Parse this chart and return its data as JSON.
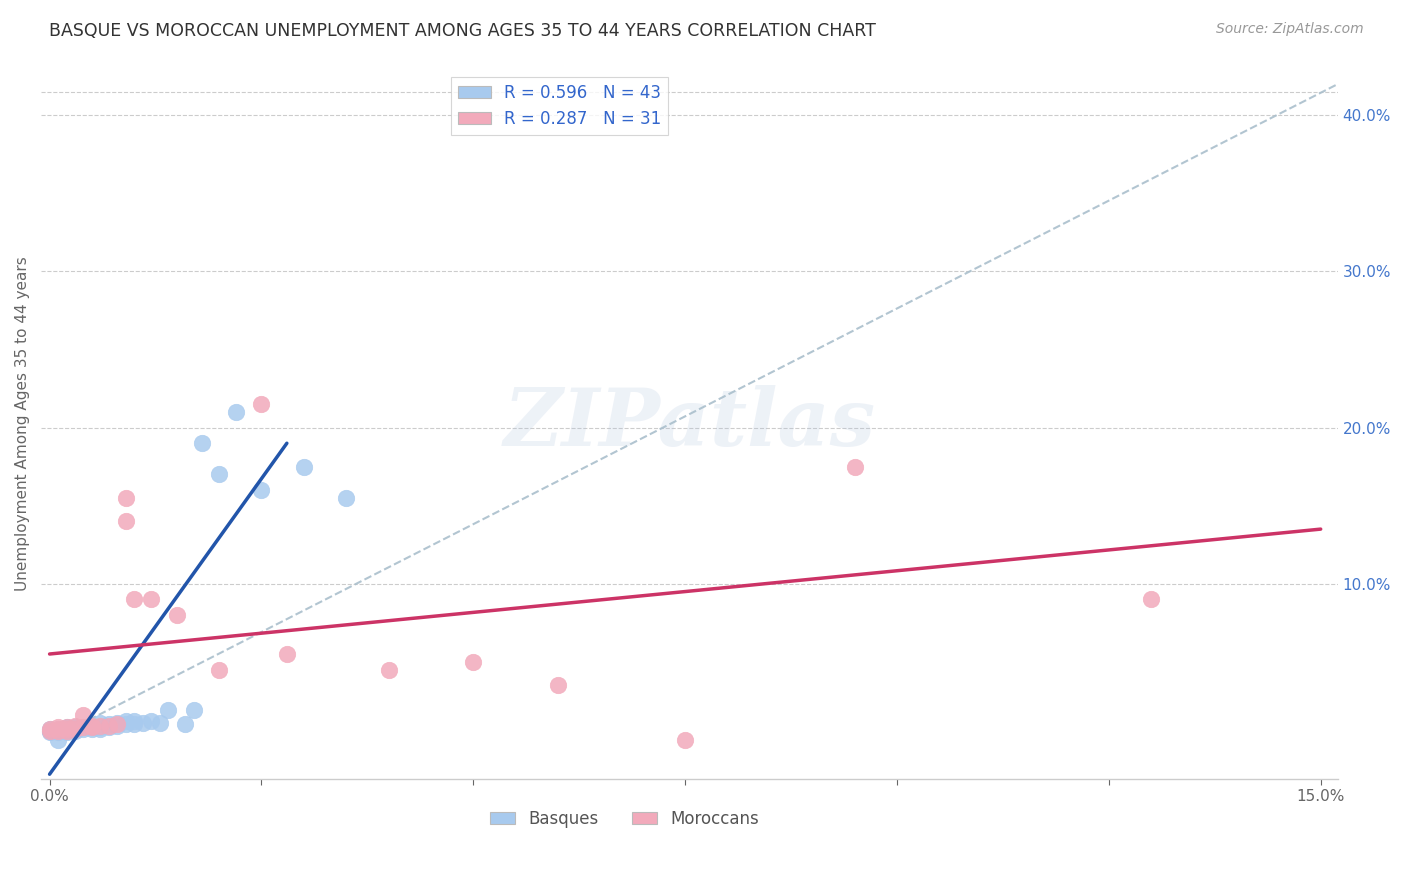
{
  "title": "BASQUE VS MOROCCAN UNEMPLOYMENT AMONG AGES 35 TO 44 YEARS CORRELATION CHART",
  "source": "Source: ZipAtlas.com",
  "ylabel": "Unemployment Among Ages 35 to 44 years",
  "xlim": [
    -0.001,
    0.152
  ],
  "ylim": [
    -0.025,
    0.43
  ],
  "xticks": [
    0.0,
    0.025,
    0.05,
    0.075,
    0.1,
    0.125,
    0.15
  ],
  "xtick_labels": [
    "0.0%",
    "",
    "",
    "",
    "",
    "",
    "15.0%"
  ],
  "ytick_right": [
    0.1,
    0.2,
    0.3,
    0.4
  ],
  "ytick_right_labels": [
    "10.0%",
    "20.0%",
    "30.0%",
    "40.0%"
  ],
  "blue_dot_color": "#A8CAEE",
  "pink_dot_color": "#F2AABB",
  "blue_line_color": "#2255AA",
  "pink_line_color": "#CC3366",
  "diag_color": "#AABFCC",
  "watermark": "ZIPatlas",
  "basque_R": 0.596,
  "basque_N": 43,
  "moroccan_R": 0.287,
  "moroccan_N": 31,
  "basque_x": [
    0.0,
    0.0,
    0.0,
    0.001,
    0.001,
    0.001,
    0.001,
    0.002,
    0.002,
    0.002,
    0.002,
    0.003,
    0.003,
    0.003,
    0.003,
    0.004,
    0.004,
    0.005,
    0.005,
    0.005,
    0.006,
    0.006,
    0.006,
    0.007,
    0.007,
    0.008,
    0.008,
    0.009,
    0.009,
    0.01,
    0.01,
    0.011,
    0.012,
    0.013,
    0.014,
    0.016,
    0.017,
    0.018,
    0.02,
    0.022,
    0.025,
    0.03,
    0.035
  ],
  "basque_y": [
    0.005,
    0.006,
    0.007,
    0.0,
    0.005,
    0.006,
    0.007,
    0.005,
    0.006,
    0.007,
    0.008,
    0.006,
    0.007,
    0.007,
    0.008,
    0.007,
    0.008,
    0.007,
    0.008,
    0.009,
    0.007,
    0.008,
    0.011,
    0.008,
    0.01,
    0.009,
    0.011,
    0.01,
    0.012,
    0.01,
    0.012,
    0.011,
    0.012,
    0.011,
    0.019,
    0.01,
    0.019,
    0.19,
    0.17,
    0.21,
    0.16,
    0.175,
    0.155
  ],
  "moroccan_x": [
    0.0,
    0.0,
    0.001,
    0.001,
    0.001,
    0.002,
    0.002,
    0.002,
    0.003,
    0.003,
    0.004,
    0.004,
    0.005,
    0.005,
    0.006,
    0.007,
    0.008,
    0.009,
    0.009,
    0.01,
    0.012,
    0.015,
    0.02,
    0.025,
    0.028,
    0.04,
    0.05,
    0.06,
    0.075,
    0.095,
    0.13
  ],
  "moroccan_y": [
    0.006,
    0.007,
    0.006,
    0.007,
    0.008,
    0.006,
    0.007,
    0.008,
    0.007,
    0.009,
    0.008,
    0.016,
    0.008,
    0.009,
    0.009,
    0.009,
    0.01,
    0.155,
    0.14,
    0.09,
    0.09,
    0.08,
    0.045,
    0.215,
    0.055,
    0.045,
    0.05,
    0.035,
    0.0,
    0.175,
    0.09
  ],
  "blue_line_x": [
    0.0,
    0.03
  ],
  "blue_line_y_intercept": -0.02,
  "blue_line_slope": 7.0,
  "pink_line_x": [
    0.0,
    0.15
  ],
  "pink_line_y_start": 0.055,
  "pink_line_y_end": 0.135
}
